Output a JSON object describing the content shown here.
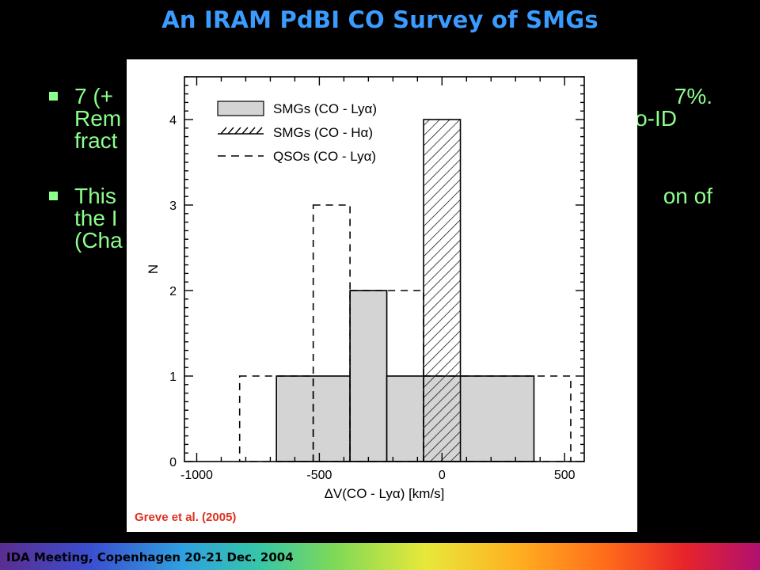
{
  "slide": {
    "title": "An IRAM PdBI CO Survey of SMGs",
    "bullets": [
      {
        "lines": [
          "7 (+",
          "7%.",
          "Rem",
          "o-ID",
          "fract"
        ]
      },
      {
        "lines": [
          "This",
          "on of",
          "the I",
          "(Cha"
        ]
      }
    ],
    "caption": "Greve et al. (2005)",
    "footer": "IDA Meeting, Copenhagen 20-21 Dec. 2004"
  },
  "colors": {
    "title": "#3b9cff",
    "bullet_text": "#8cff8c",
    "caption": "#e0301e",
    "gray_fill": "#d4d4d4",
    "background": "#000000"
  },
  "chart_data": {
    "type": "bar",
    "xlabel": "ΔV(CO - Lyα) [km/s]",
    "ylabel": "N",
    "xlim": [
      -1050,
      580
    ],
    "ylim": [
      0,
      4.5
    ],
    "xticks": [
      -1000,
      -500,
      0,
      500
    ],
    "xtick_labels": [
      "-1000",
      "-500",
      "0",
      "500"
    ],
    "yticks": [
      0,
      1,
      2,
      3,
      4
    ],
    "ytick_labels": [
      "0",
      "1",
      "2",
      "3",
      "4"
    ],
    "legend_position": "top-left",
    "legend": [
      {
        "label": "SMGs (CO - Lyα)",
        "style": "gray-fill"
      },
      {
        "label": "SMGs (CO - Hα)",
        "style": "hatched"
      },
      {
        "label": "QSOs (CO - Lyα)",
        "style": "dashed"
      }
    ],
    "series": [
      {
        "name": "SMGs (CO - Lyα)",
        "style": "gray-fill",
        "bins": [
          {
            "x0": -675,
            "x1": -375,
            "count": 1
          },
          {
            "x0": -375,
            "x1": -225,
            "count": 2
          },
          {
            "x0": -225,
            "x1": 375,
            "count": 1
          }
        ]
      },
      {
        "name": "SMGs (CO - Hα)",
        "style": "hatched",
        "bins": [
          {
            "x0": -75,
            "x1": 75,
            "count": 4
          }
        ]
      },
      {
        "name": "QSOs (CO - Lyα)",
        "style": "dashed",
        "bins": [
          {
            "x0": -825,
            "x1": -525,
            "count": 1
          },
          {
            "x0": -525,
            "x1": -375,
            "count": 3
          },
          {
            "x0": -375,
            "x1": -75,
            "count": 2
          },
          {
            "x0": -75,
            "x1": 525,
            "count": 1
          }
        ]
      }
    ]
  }
}
